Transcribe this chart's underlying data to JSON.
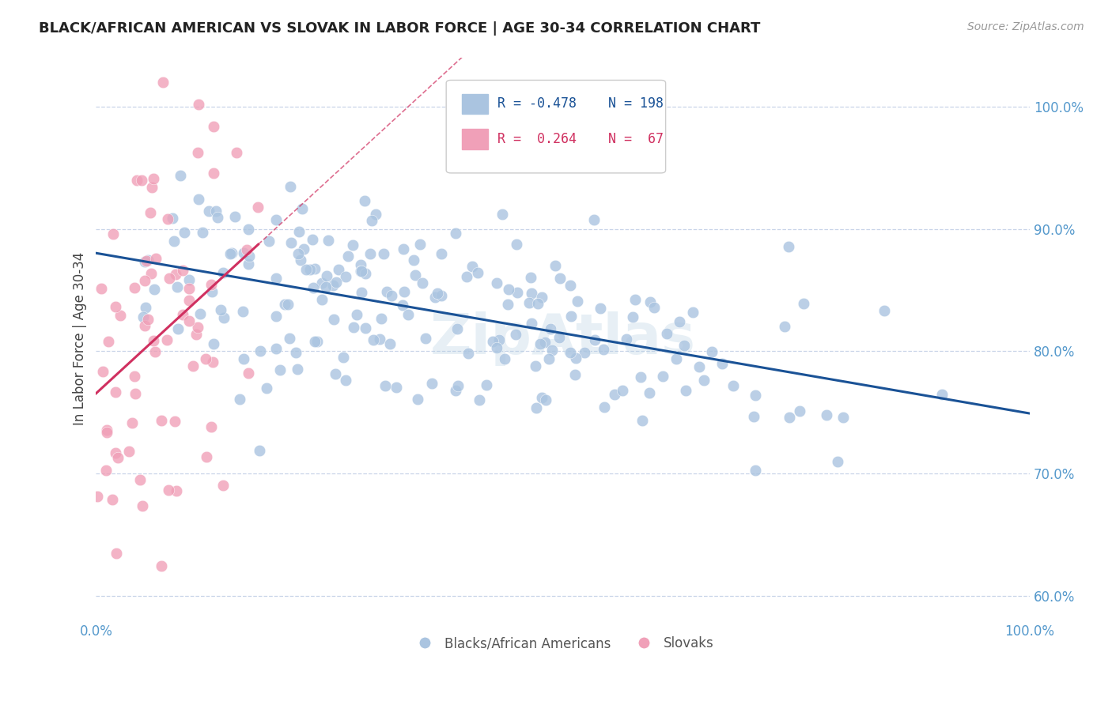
{
  "title": "BLACK/AFRICAN AMERICAN VS SLOVAK IN LABOR FORCE | AGE 30-34 CORRELATION CHART",
  "source": "Source: ZipAtlas.com",
  "ylabel": "In Labor Force | Age 30-34",
  "xlim": [
    0.0,
    1.0
  ],
  "ylim": [
    0.58,
    1.04
  ],
  "yticks": [
    0.6,
    0.7,
    0.8,
    0.9,
    1.0
  ],
  "ytick_labels": [
    "60.0%",
    "70.0%",
    "80.0%",
    "90.0%",
    "100.0%"
  ],
  "xticks": [
    0.0,
    1.0
  ],
  "xtick_labels": [
    "0.0%",
    "100.0%"
  ],
  "blue_R": -0.478,
  "blue_N": 198,
  "pink_R": 0.264,
  "pink_N": 67,
  "blue_color": "#aac4e0",
  "pink_color": "#f0a0b8",
  "blue_line_color": "#1a5296",
  "pink_line_color": "#d03060",
  "grid_color": "#c8d4e8",
  "background_color": "#ffffff",
  "title_color": "#222222",
  "axis_label_color": "#444444",
  "tick_label_color": "#5599cc",
  "legend_blue_label": "Blacks/African Americans",
  "legend_pink_label": "Slovaks",
  "watermark": "ZipAtlas",
  "seed": 42
}
